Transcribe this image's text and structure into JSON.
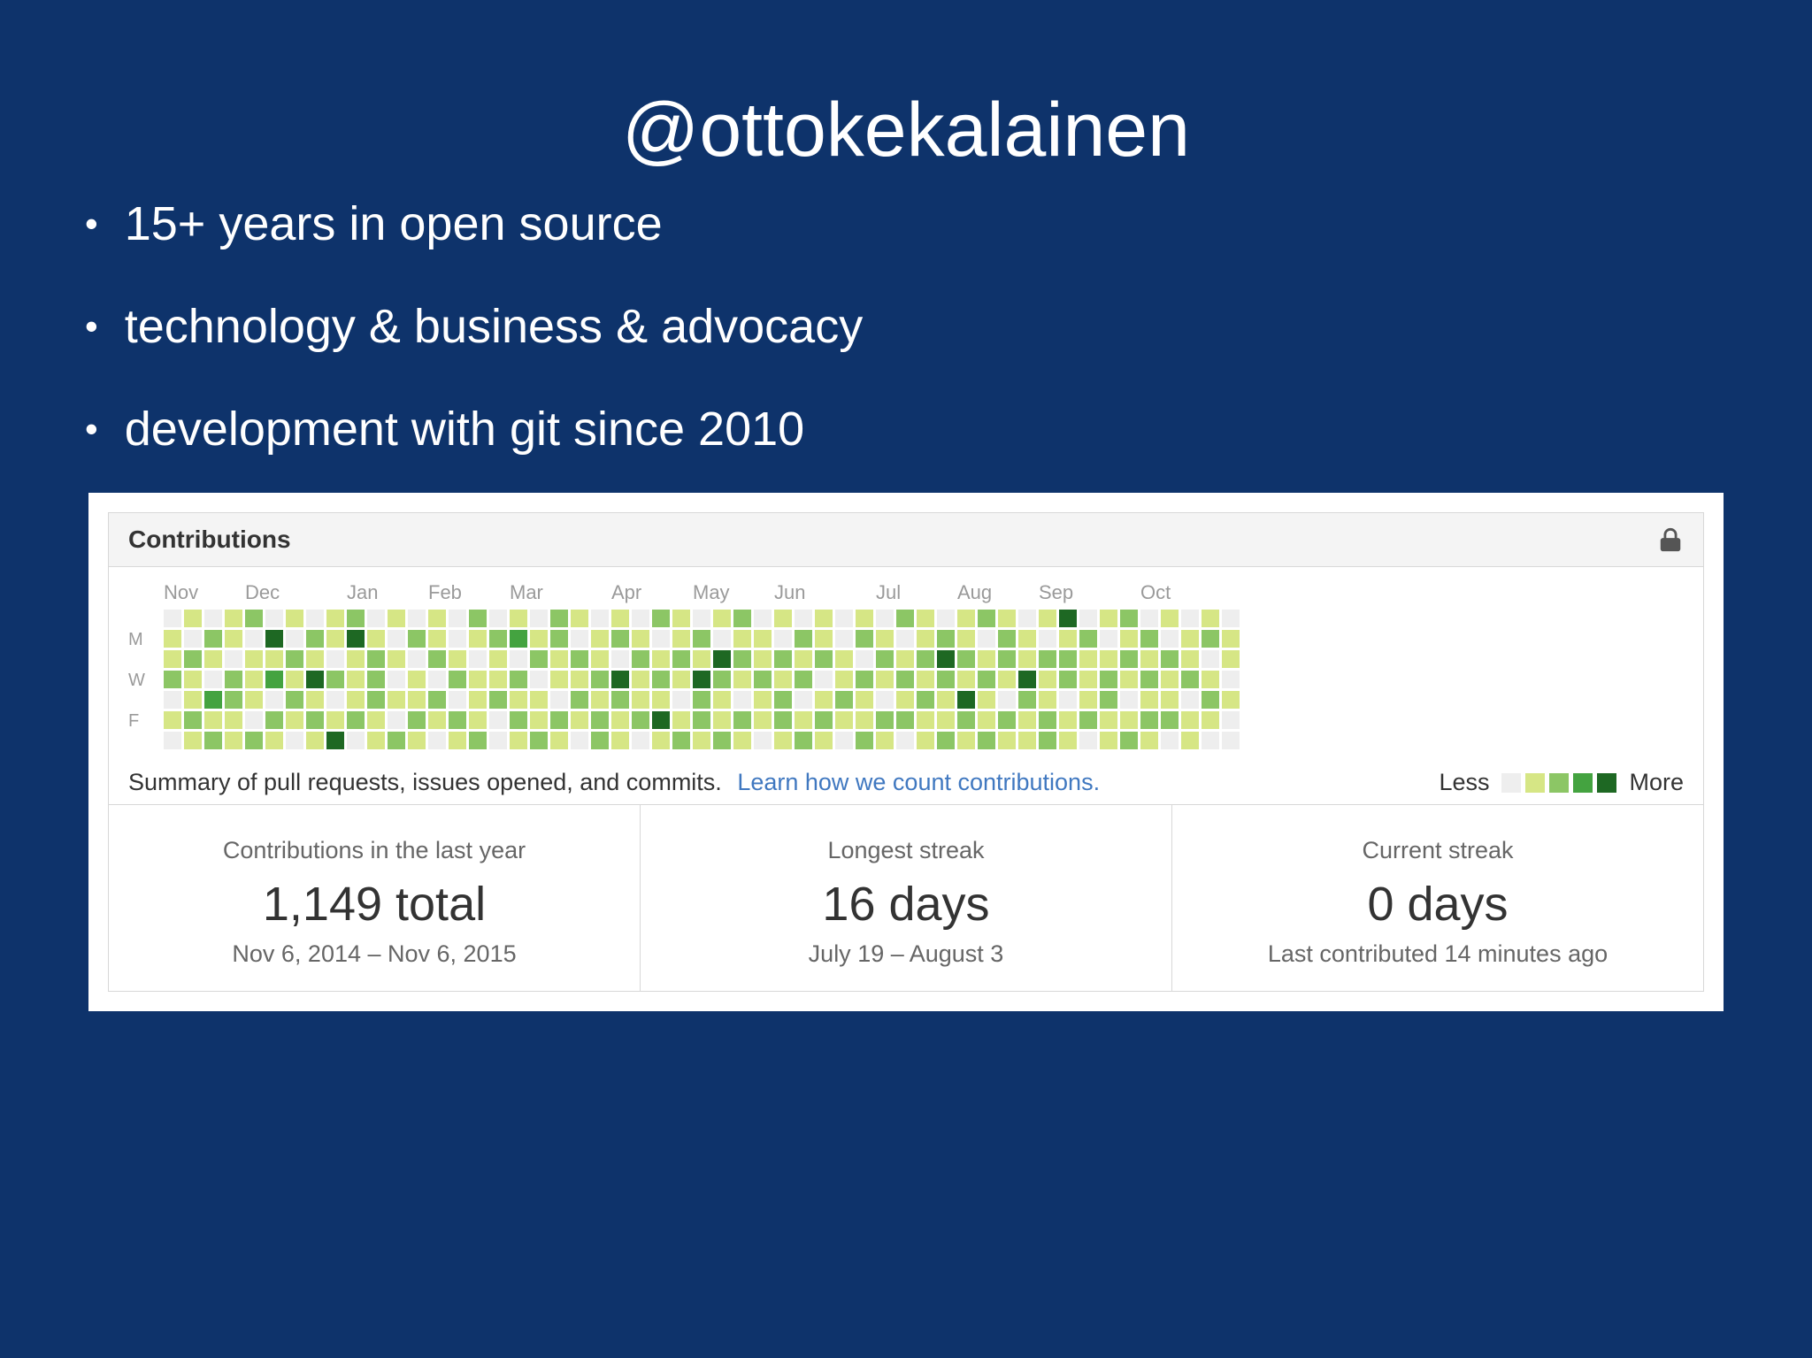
{
  "slide": {
    "title": "@ottokekalainen",
    "bullets": [
      "15+ years in open source",
      "technology & business & advocacy",
      "development with git since 2010"
    ],
    "background_color": "#0e336b"
  },
  "contributions_panel": {
    "header": "Contributions",
    "lock_icon": "lock-icon",
    "months": [
      "Nov",
      "Dec",
      "Jan",
      "Feb",
      "Mar",
      "Apr",
      "May",
      "Jun",
      "Jul",
      "Aug",
      "Sep",
      "Oct"
    ],
    "day_labels": [
      "M",
      "W",
      "F"
    ],
    "summary_text": "Summary of pull requests, issues opened, and commits.",
    "summary_link": "Learn how we count contributions.",
    "legend": {
      "less": "Less",
      "more": "More",
      "colors": [
        "#eeeeee",
        "#d6e685",
        "#8cc665",
        "#44a340",
        "#1e6823"
      ]
    },
    "stats": [
      {
        "label": "Contributions in the last year",
        "value": "1,149 total",
        "sub": "Nov 6, 2014 – Nov 6, 2015"
      },
      {
        "label": "Longest streak",
        "value": "16 days",
        "sub": "July 19 – August 3"
      },
      {
        "label": "Current streak",
        "value": "0 days",
        "sub": "Last contributed 14 minutes ago"
      }
    ]
  },
  "chart_data": {
    "type": "heatmap",
    "title": "GitHub contribution calendar, Nov 6 2014 – Nov 6 2015",
    "x_labels": [
      "Nov",
      "Dec",
      "Jan",
      "Feb",
      "Mar",
      "Apr",
      "May",
      "Jun",
      "Jul",
      "Aug",
      "Sep",
      "Oct"
    ],
    "month_start_weeks": [
      0,
      4,
      9,
      13,
      17,
      22,
      26,
      30,
      35,
      39,
      43,
      48
    ],
    "weeks": 53,
    "days_per_week": 7,
    "total_contributions": 1149,
    "palette": [
      "#eeeeee",
      "#d6e685",
      "#8cc665",
      "#44a340",
      "#1e6823"
    ],
    "legend_position": "bottom-right",
    "levels": [
      "0112010",
      "1021121",
      "0210312",
      "1102211",
      "2011102",
      "0413021",
      "1021210",
      "0214121",
      "1102014",
      "2411120",
      "0122211",
      "1010102",
      "0201121",
      "1120210",
      "0012021",
      "2101112",
      "0211200",
      "1302121",
      "0120112",
      "2211021",
      "1021210",
      "0112122",
      "1204211",
      "0121120",
      "2012141",
      "1121012",
      "0214221",
      "1042112",
      "2121021",
      "0112110",
      "1021221",
      "0212012",
      "1120121",
      "0011210",
      "1202112",
      "0121021",
      "2012120",
      "1121211",
      "0242112",
      "1121421",
      "2012112",
      "1221021",
      "0114211",
      "1021122",
      "4122011",
      "0211120",
      "1012211",
      "2121012",
      "0212121",
      "1021120",
      "0112011",
      "1201210",
      "0110100"
    ]
  }
}
